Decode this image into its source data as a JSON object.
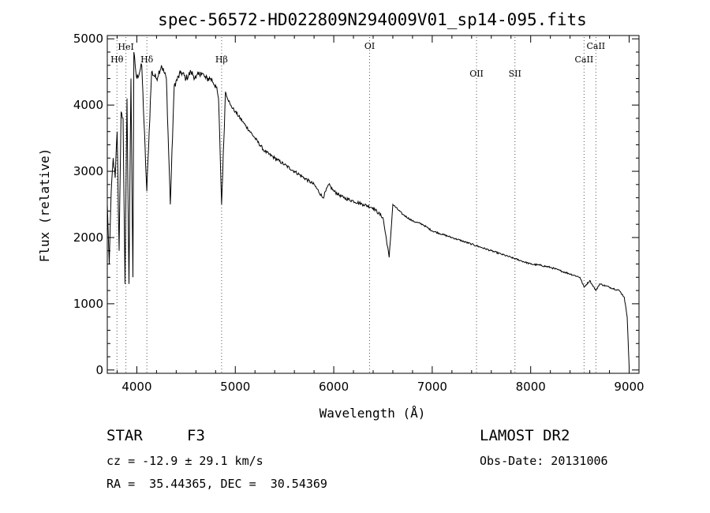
{
  "chart_data": {
    "type": "line",
    "title": "spec-56572-HD022809N294009V01_sp14-095.fits",
    "xlabel": "Wavelength (Å)",
    "ylabel": "Flux (relative)",
    "xlim": [
      3700,
      9100
    ],
    "ylim": [
      -50,
      5050
    ],
    "x_ticks": [
      4000,
      5000,
      6000,
      7000,
      8000,
      9000
    ],
    "y_ticks": [
      0,
      1000,
      2000,
      3000,
      4000,
      5000
    ],
    "grid": false,
    "series": [
      {
        "x": [
          3700,
          3720,
          3740,
          3760,
          3780,
          3800,
          3820,
          3840,
          3860,
          3880,
          3900,
          3920,
          3940,
          3960,
          3970,
          3990,
          4000,
          4050,
          4101,
          4150,
          4200,
          4250,
          4300,
          4340,
          4380,
          4450,
          4500,
          4550,
          4600,
          4650,
          4700,
          4750,
          4800,
          4830,
          4861,
          4900,
          4950,
          5000,
          5100,
          5200,
          5300,
          5400,
          5500,
          5600,
          5700,
          5800,
          5890,
          5950,
          6000,
          6100,
          6200,
          6300,
          6400,
          6500,
          6563,
          6600,
          6700,
          6800,
          6900,
          7000,
          7100,
          7200,
          7300,
          7400,
          7500,
          7600,
          7700,
          7800,
          7900,
          8000,
          8100,
          8200,
          8300,
          8400,
          8500,
          8542,
          8600,
          8662,
          8700,
          8800,
          8900,
          8950,
          8980,
          9000
        ],
        "y": [
          2500,
          1600,
          2700,
          3200,
          2900,
          3600,
          1800,
          3900,
          3800,
          1300,
          4100,
          1300,
          4400,
          1400,
          4800,
          4500,
          4400,
          4600,
          2700,
          4500,
          4400,
          4600,
          4400,
          2500,
          4300,
          4500,
          4400,
          4500,
          4400,
          4500,
          4400,
          4400,
          4300,
          4100,
          2500,
          4200,
          4000,
          3900,
          3700,
          3500,
          3300,
          3200,
          3100,
          3000,
          2900,
          2800,
          2600,
          2800,
          2700,
          2600,
          2550,
          2500,
          2450,
          2300,
          1700,
          2500,
          2350,
          2250,
          2200,
          2100,
          2050,
          2000,
          1950,
          1900,
          1850,
          1800,
          1750,
          1700,
          1650,
          1600,
          1580,
          1550,
          1500,
          1450,
          1400,
          1250,
          1350,
          1200,
          1300,
          1250,
          1200,
          1100,
          800,
          50
        ]
      }
    ],
    "line_marks": [
      {
        "label": "Hθ",
        "x": 3798
      },
      {
        "label": "HeI",
        "x": 3889
      },
      {
        "label": "Hδ",
        "x": 4102
      },
      {
        "label": "Hβ",
        "x": 4861
      },
      {
        "label": "OI",
        "x": 6364
      },
      {
        "label": "OII",
        "x": 7450
      },
      {
        "label": "SII",
        "x": 7840
      },
      {
        "label": "CaII",
        "x": 8542
      },
      {
        "label": "CaII",
        "x": 8662
      }
    ]
  },
  "info": {
    "class_label": "STAR",
    "subclass": "F3",
    "survey": "LAMOST DR2",
    "cz": "cz = -12.9 ± 29.1 km/s",
    "obs_date": "Obs-Date: 20131006",
    "coords": "RA =  35.44365, DEC =  30.54369"
  }
}
